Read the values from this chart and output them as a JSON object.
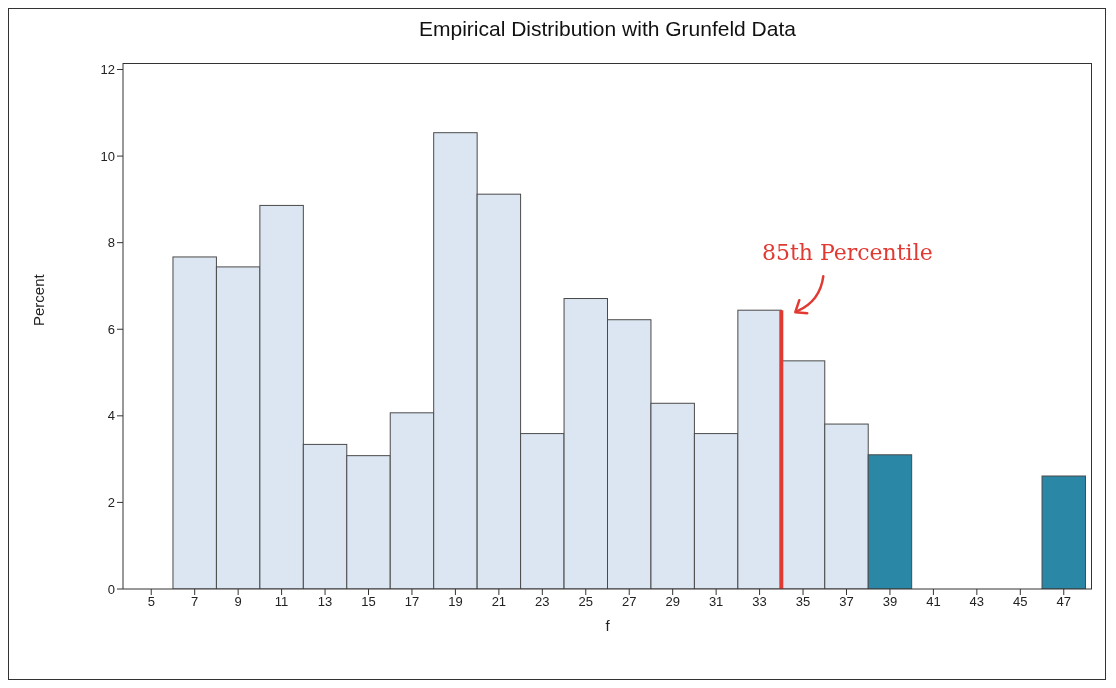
{
  "chart_data": {
    "type": "histogram",
    "title": "Empirical Distribution with Grunfeld Data",
    "xlabel": "f",
    "ylabel": "Percent",
    "bins": [
      6,
      8,
      10,
      12,
      14,
      16,
      18,
      20,
      22,
      24,
      26,
      28,
      30,
      32,
      34,
      36,
      38,
      40,
      42,
      44,
      46,
      48
    ],
    "values": [
      7.67,
      7.44,
      8.86,
      3.34,
      3.08,
      4.07,
      10.54,
      9.12,
      3.59,
      6.71,
      6.22,
      4.29,
      3.59,
      6.44,
      5.27,
      3.81,
      3.1,
      0,
      0,
      0,
      2.61
    ],
    "colors": [
      "#dce6f2",
      "#dce6f2",
      "#dce6f2",
      "#dce6f2",
      "#dce6f2",
      "#dce6f2",
      "#dce6f2",
      "#dce6f2",
      "#dce6f2",
      "#dce6f2",
      "#dce6f2",
      "#dce6f2",
      "#dce6f2",
      "#dce6f2",
      "#dce6f2",
      "#dce6f2",
      "#2a87a6",
      "#2a87a6",
      "#2a87a6",
      "#2a87a6",
      "#2a87a6"
    ],
    "xlim": [
      3.7,
      48.3
    ],
    "xticks": [
      5,
      7,
      9,
      11,
      13,
      15,
      17,
      19,
      21,
      23,
      25,
      27,
      29,
      31,
      33,
      35,
      37,
      39,
      41,
      43,
      45,
      47
    ],
    "ylim": [
      0,
      12.15
    ],
    "yticks": [
      0,
      2,
      4,
      6,
      8,
      10,
      12
    ],
    "grid": false,
    "legend": false,
    "ref_lines": [
      {
        "axis": "x",
        "value": 34,
        "label": "85th Percentile",
        "color": "#e03a33"
      }
    ]
  }
}
